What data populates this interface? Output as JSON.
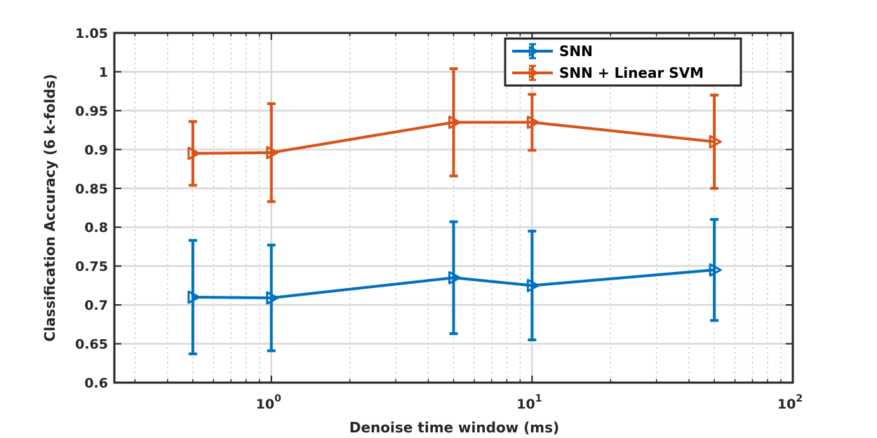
{
  "chart_data": {
    "type": "line",
    "xscale": "log",
    "xlabel": "Denoise time window (ms)",
    "ylabel": "Classification Accuracy (6 k-folds)",
    "xlim": [
      0.25,
      100
    ],
    "ylim": [
      0.6,
      1.05
    ],
    "xticks": [
      {
        "base": "10",
        "exp": "0"
      },
      {
        "base": "10",
        "exp": "1"
      },
      {
        "base": "10",
        "exp": "2"
      }
    ],
    "yticks": [
      "0.6",
      "0.65",
      "0.7",
      "0.75",
      "0.8",
      "0.85",
      "0.9",
      "0.95",
      "1",
      "1.05"
    ],
    "grid": true,
    "minor_grid": true,
    "legend_position": "top-right",
    "series": [
      {
        "name": "SNN",
        "color": "#0072BD",
        "x": [
          0.5,
          1,
          5,
          10,
          50
        ],
        "y": [
          0.71,
          0.709,
          0.735,
          0.725,
          0.745
        ],
        "err": [
          0.073,
          0.068,
          0.072,
          0.07,
          0.065
        ]
      },
      {
        "name": "SNN + Linear SVM",
        "color": "#D95319",
        "x": [
          0.5,
          1,
          5,
          10,
          50
        ],
        "y": [
          0.895,
          0.896,
          0.935,
          0.935,
          0.91
        ],
        "err": [
          0.041,
          0.063,
          0.069,
          0.036,
          0.06
        ]
      }
    ]
  }
}
